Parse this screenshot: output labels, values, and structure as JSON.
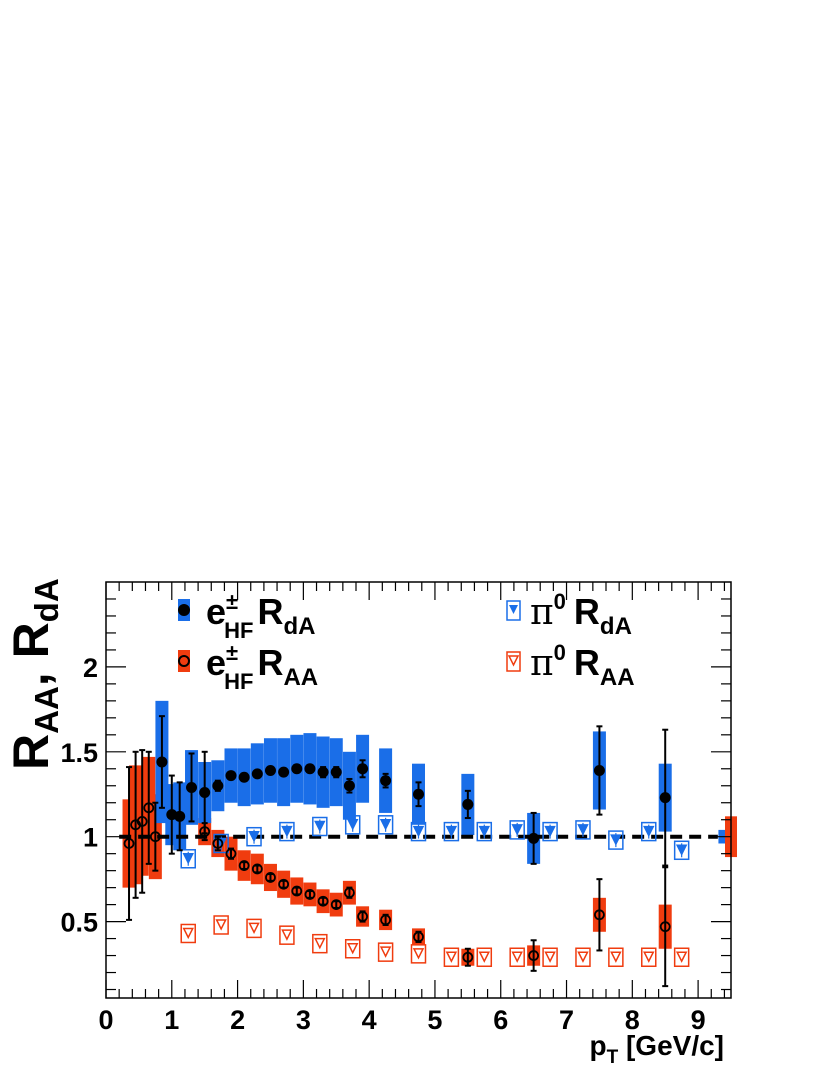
{
  "chart_data": {
    "type": "scatter",
    "title": "",
    "xlabel": "p_T [GeV/c]",
    "ylabel": "R_AA, R_dA",
    "xlim": [
      0,
      9.5
    ],
    "ylim": [
      0.05,
      2.5
    ],
    "x_ticks": [
      0,
      1,
      2,
      3,
      4,
      5,
      6,
      7,
      8,
      9
    ],
    "y_ticks": [
      0.5,
      1,
      1.5,
      2
    ],
    "x_tick_labels": [
      "0",
      "1",
      "2",
      "3",
      "4",
      "5",
      "6",
      "7",
      "8",
      "9"
    ],
    "y_tick_labels": [
      "0.5",
      "1",
      "1.5",
      "2"
    ],
    "reference_line": 1,
    "grid": false,
    "legend_position": "top",
    "colors": {
      "dA_box": "#1a6ee8",
      "AA_box": "#f03c0f",
      "pi0_dA": "#1a6ee8",
      "pi0_AA": "#f03c0f",
      "point": "#000000"
    },
    "series": [
      {
        "name": "e±_HF R_dA",
        "legend_main": "e",
        "legend_sup": "±",
        "legend_sub": "HF",
        "legend_R": "R",
        "legend_rsub": "dA",
        "marker": "filled-circle",
        "points": [
          {
            "x": 0.85,
            "y": 1.44,
            "stat": 0.27,
            "sys": 0.36
          },
          {
            "x": 1.0,
            "y": 1.13,
            "stat": 0.23,
            "sys": 0.18
          },
          {
            "x": 1.12,
            "y": 1.12,
            "stat": 0.2,
            "sys": 0.2
          },
          {
            "x": 1.3,
            "y": 1.29,
            "stat": 0.2,
            "sys": 0.22
          },
          {
            "x": 1.5,
            "y": 1.26,
            "stat": 0.24,
            "sys": 0.18
          },
          {
            "x": 1.7,
            "y": 1.3,
            "stat": 0.03,
            "sys": 0.15
          },
          {
            "x": 1.9,
            "y": 1.36,
            "stat": 0.02,
            "sys": 0.16
          },
          {
            "x": 2.1,
            "y": 1.35,
            "stat": 0.02,
            "sys": 0.17
          },
          {
            "x": 2.3,
            "y": 1.37,
            "stat": 0.02,
            "sys": 0.18
          },
          {
            "x": 2.5,
            "y": 1.39,
            "stat": 0.02,
            "sys": 0.19
          },
          {
            "x": 2.7,
            "y": 1.38,
            "stat": 0.02,
            "sys": 0.2
          },
          {
            "x": 2.9,
            "y": 1.4,
            "stat": 0.02,
            "sys": 0.2
          },
          {
            "x": 3.1,
            "y": 1.4,
            "stat": 0.02,
            "sys": 0.21
          },
          {
            "x": 3.3,
            "y": 1.38,
            "stat": 0.03,
            "sys": 0.21
          },
          {
            "x": 3.5,
            "y": 1.38,
            "stat": 0.03,
            "sys": 0.2
          },
          {
            "x": 3.7,
            "y": 1.3,
            "stat": 0.04,
            "sys": 0.2
          },
          {
            "x": 3.9,
            "y": 1.4,
            "stat": 0.05,
            "sys": 0.2
          },
          {
            "x": 4.25,
            "y": 1.33,
            "stat": 0.04,
            "sys": 0.19
          },
          {
            "x": 4.75,
            "y": 1.25,
            "stat": 0.07,
            "sys": 0.18
          },
          {
            "x": 5.5,
            "y": 1.19,
            "stat": 0.08,
            "sys": 0.18
          },
          {
            "x": 6.5,
            "y": 0.99,
            "stat": 0.15,
            "sys": 0.15
          },
          {
            "x": 7.5,
            "y": 1.39,
            "stat": 0.26,
            "sys": 0.23
          },
          {
            "x": 8.5,
            "y": 1.23,
            "stat": 0.4,
            "sys": 0.2
          }
        ]
      },
      {
        "name": "e±_HF R_AA",
        "legend_main": "e",
        "legend_sup": "±",
        "legend_sub": "HF",
        "legend_R": "R",
        "legend_rsub": "AA",
        "marker": "open-circle",
        "points": [
          {
            "x": 0.35,
            "y": 0.96,
            "stat": 0.45,
            "sys": 0.26
          },
          {
            "x": 0.45,
            "y": 1.07,
            "stat": 0.43,
            "sys": 0.35
          },
          {
            "x": 0.55,
            "y": 1.09,
            "stat": 0.42,
            "sys": 0.32
          },
          {
            "x": 0.65,
            "y": 1.17,
            "stat": 0.33,
            "sys": 0.3
          },
          {
            "x": 0.75,
            "y": 1.0,
            "stat": 0.2,
            "sys": 0.25
          },
          {
            "x": 1.5,
            "y": 1.03,
            "stat": 0.05,
            "sys": 0.08
          },
          {
            "x": 1.7,
            "y": 0.96,
            "stat": 0.04,
            "sys": 0.08
          },
          {
            "x": 1.9,
            "y": 0.9,
            "stat": 0.03,
            "sys": 0.1
          },
          {
            "x": 2.1,
            "y": 0.83,
            "stat": 0.02,
            "sys": 0.09
          },
          {
            "x": 2.3,
            "y": 0.81,
            "stat": 0.02,
            "sys": 0.09
          },
          {
            "x": 2.5,
            "y": 0.76,
            "stat": 0.02,
            "sys": 0.08
          },
          {
            "x": 2.7,
            "y": 0.72,
            "stat": 0.02,
            "sys": 0.08
          },
          {
            "x": 2.9,
            "y": 0.68,
            "stat": 0.02,
            "sys": 0.08
          },
          {
            "x": 3.1,
            "y": 0.66,
            "stat": 0.02,
            "sys": 0.07
          },
          {
            "x": 3.3,
            "y": 0.62,
            "stat": 0.02,
            "sys": 0.07
          },
          {
            "x": 3.5,
            "y": 0.6,
            "stat": 0.02,
            "sys": 0.07
          },
          {
            "x": 3.7,
            "y": 0.67,
            "stat": 0.03,
            "sys": 0.07
          },
          {
            "x": 3.9,
            "y": 0.53,
            "stat": 0.03,
            "sys": 0.06
          },
          {
            "x": 4.25,
            "y": 0.51,
            "stat": 0.03,
            "sys": 0.06
          },
          {
            "x": 4.75,
            "y": 0.41,
            "stat": 0.03,
            "sys": 0.05
          },
          {
            "x": 5.5,
            "y": 0.29,
            "stat": 0.05,
            "sys": 0.05
          },
          {
            "x": 6.5,
            "y": 0.3,
            "stat": 0.09,
            "sys": 0.06
          },
          {
            "x": 7.5,
            "y": 0.54,
            "stat": 0.21,
            "sys": 0.1
          },
          {
            "x": 8.5,
            "y": 0.47,
            "stat": 0.35,
            "sys": 0.13
          }
        ]
      },
      {
        "name": "π0 R_dA",
        "legend_main": "π",
        "legend_sup": "0",
        "legend_R": "R",
        "legend_rsub": "dA",
        "marker": "filled-triangle-in-open-box",
        "points": [
          {
            "x": 1.25,
            "y": 0.87
          },
          {
            "x": 1.75,
            "y": 0.96
          },
          {
            "x": 2.25,
            "y": 1.0
          },
          {
            "x": 2.75,
            "y": 1.03
          },
          {
            "x": 3.25,
            "y": 1.06
          },
          {
            "x": 3.75,
            "y": 1.07
          },
          {
            "x": 4.25,
            "y": 1.07
          },
          {
            "x": 4.75,
            "y": 1.03
          },
          {
            "x": 5.25,
            "y": 1.03
          },
          {
            "x": 5.75,
            "y": 1.03
          },
          {
            "x": 6.25,
            "y": 1.04
          },
          {
            "x": 6.75,
            "y": 1.03
          },
          {
            "x": 7.25,
            "y": 1.04
          },
          {
            "x": 7.75,
            "y": 0.98
          },
          {
            "x": 8.25,
            "y": 1.03
          },
          {
            "x": 8.75,
            "y": 0.92
          }
        ]
      },
      {
        "name": "π0 R_AA",
        "legend_main": "π",
        "legend_sup": "0",
        "legend_R": "R",
        "legend_rsub": "AA",
        "marker": "open-triangle-in-open-box",
        "points": [
          {
            "x": 1.25,
            "y": 0.43
          },
          {
            "x": 1.75,
            "y": 0.48
          },
          {
            "x": 2.25,
            "y": 0.46
          },
          {
            "x": 2.75,
            "y": 0.42
          },
          {
            "x": 3.25,
            "y": 0.37
          },
          {
            "x": 3.75,
            "y": 0.34
          },
          {
            "x": 4.25,
            "y": 0.32
          },
          {
            "x": 4.75,
            "y": 0.31
          },
          {
            "x": 5.25,
            "y": 0.29
          },
          {
            "x": 5.75,
            "y": 0.29
          },
          {
            "x": 6.25,
            "y": 0.29
          },
          {
            "x": 6.75,
            "y": 0.29
          },
          {
            "x": 7.25,
            "y": 0.29
          },
          {
            "x": 7.75,
            "y": 0.29
          },
          {
            "x": 8.25,
            "y": 0.29
          },
          {
            "x": 8.75,
            "y": 0.29
          }
        ]
      }
    ],
    "normalization_boxes": [
      {
        "x": 9.4,
        "y": 1.0,
        "half_height": 0.04,
        "series": "dA"
      },
      {
        "x": 9.5,
        "y": 1.0,
        "half_height": 0.12,
        "series": "AA"
      }
    ]
  }
}
